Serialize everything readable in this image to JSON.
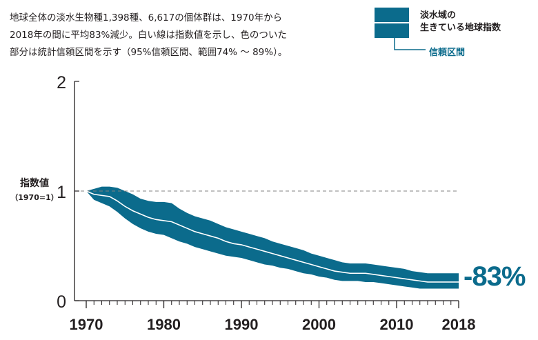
{
  "caption": {
    "line1": "地球全体の淡水生物種1,398種、6,617の個体群は、1970年から",
    "line2": "2018年の間に平均83%減少。白い線は指数値を示し、色のついた",
    "line3": "部分は統計信頼区間を示す（95%信頼区間、範囲74% 〜 89%）。"
  },
  "legend": {
    "index_label_line1": "淡水域の",
    "index_label_line2": "生きている地球指数",
    "ci_label": "信頼区間"
  },
  "colors": {
    "band": "#0b6b8c",
    "index_line": "#ffffff",
    "reference": "#808080",
    "axis": "#231f20"
  },
  "change_label": "-83%",
  "chart_data": {
    "type": "area",
    "title": "",
    "ylabel": "指数値",
    "ylabel_sub": "（1970=1）",
    "xlabel": "",
    "xlim": [
      1970,
      2018
    ],
    "ylim": [
      0,
      2
    ],
    "x_ticks": [
      1970,
      1980,
      1990,
      2000,
      2010,
      2018
    ],
    "y_ticks": [
      0,
      1,
      2
    ],
    "reference_line": 1,
    "series": [
      {
        "x": [
          1970,
          1971,
          1972,
          1973,
          1974,
          1975,
          1976,
          1977,
          1978,
          1979,
          1980,
          1981,
          1982,
          1983,
          1984,
          1985,
          1986,
          1987,
          1988,
          1989,
          1990,
          1991,
          1992,
          1993,
          1994,
          1995,
          1996,
          1997,
          1998,
          1999,
          2000,
          2001,
          2002,
          2003,
          2004,
          2005,
          2006,
          2007,
          2008,
          2009,
          2010,
          2011,
          2012,
          2013,
          2014,
          2015,
          2016,
          2017,
          2018
        ],
        "index": [
          1.0,
          0.97,
          0.96,
          0.95,
          0.91,
          0.86,
          0.82,
          0.79,
          0.76,
          0.74,
          0.73,
          0.72,
          0.69,
          0.66,
          0.63,
          0.61,
          0.59,
          0.57,
          0.54,
          0.52,
          0.51,
          0.49,
          0.47,
          0.45,
          0.43,
          0.41,
          0.39,
          0.37,
          0.35,
          0.33,
          0.31,
          0.29,
          0.27,
          0.26,
          0.25,
          0.25,
          0.25,
          0.24,
          0.23,
          0.22,
          0.21,
          0.2,
          0.19,
          0.18,
          0.17,
          0.17,
          0.17,
          0.17,
          0.17
        ],
        "upper": [
          1.0,
          1.02,
          1.04,
          1.04,
          1.03,
          1.0,
          0.97,
          0.93,
          0.91,
          0.9,
          0.9,
          0.89,
          0.84,
          0.8,
          0.77,
          0.75,
          0.73,
          0.7,
          0.67,
          0.65,
          0.63,
          0.61,
          0.59,
          0.57,
          0.54,
          0.52,
          0.5,
          0.48,
          0.46,
          0.43,
          0.41,
          0.39,
          0.37,
          0.35,
          0.34,
          0.34,
          0.34,
          0.33,
          0.32,
          0.31,
          0.3,
          0.29,
          0.27,
          0.26,
          0.25,
          0.25,
          0.25,
          0.25,
          0.25
        ],
        "lower": [
          1.0,
          0.92,
          0.89,
          0.86,
          0.81,
          0.75,
          0.7,
          0.66,
          0.63,
          0.61,
          0.6,
          0.57,
          0.54,
          0.52,
          0.49,
          0.47,
          0.45,
          0.43,
          0.41,
          0.4,
          0.39,
          0.37,
          0.35,
          0.33,
          0.32,
          0.3,
          0.29,
          0.27,
          0.25,
          0.24,
          0.22,
          0.21,
          0.19,
          0.18,
          0.18,
          0.18,
          0.17,
          0.17,
          0.16,
          0.15,
          0.14,
          0.13,
          0.12,
          0.11,
          0.11,
          0.11,
          0.11,
          0.11,
          0.11
        ]
      }
    ]
  }
}
